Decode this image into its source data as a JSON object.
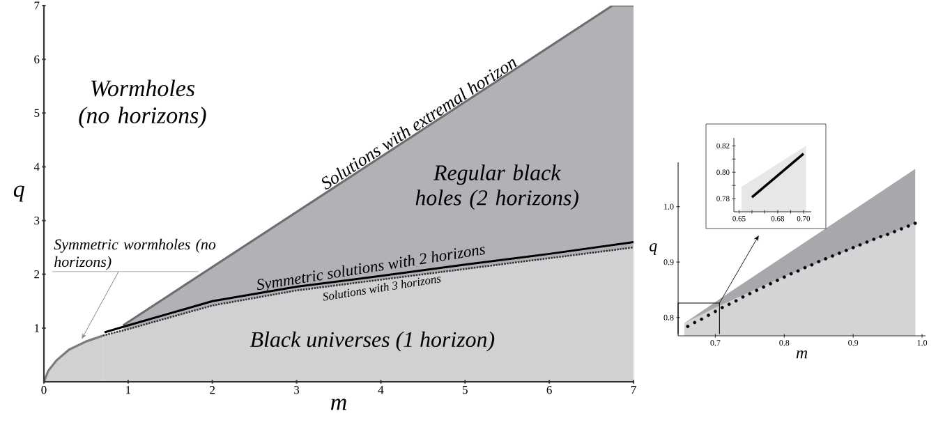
{
  "chart_data": [
    {
      "type": "area",
      "xlabel": "m",
      "ylabel": "q",
      "xlim": [
        0,
        7
      ],
      "ylim": [
        0,
        7
      ],
      "xticks": [
        0,
        1,
        2,
        3,
        4,
        5,
        6,
        7
      ],
      "yticks": [
        1,
        2,
        3,
        4,
        5,
        6,
        7
      ],
      "series": [
        {
          "color": "#b1b2b6",
          "x": [
            0.94,
            6.75,
            7
          ],
          "values": [
            1.05,
            7,
            7
          ]
        },
        {
          "color": "#d0d1d3",
          "x": [
            0,
            0.05,
            0.15,
            0.3,
            0.5,
            0.7
          ],
          "values": [
            0,
            0.2,
            0.4,
            0.6,
            0.75,
            0.86
          ]
        },
        {
          "color": "#d0d1d3",
          "line_style": "dashed",
          "x": [
            0.7,
            1,
            2,
            3,
            4,
            5,
            6,
            7
          ],
          "values": [
            0.86,
            0.98,
            1.42,
            1.7,
            1.9,
            2.1,
            2.3,
            2.5
          ]
        },
        {
          "type": "line",
          "color": "#000000",
          "x": [
            0.72,
            1,
            2,
            3,
            4,
            5,
            6,
            7
          ],
          "values": [
            0.92,
            1.05,
            1.5,
            1.77,
            1.97,
            2.18,
            2.38,
            2.6
          ]
        }
      ],
      "annotations": [
        "Wormholes (no horizons)",
        {
          "text": "Solutions with extremal horizon",
          "x": 4.5,
          "y": 4.7
        },
        "Regular black holes (2 horizons)",
        {
          "text": "Symmetric solutions with 2 horizons",
          "x": 3.9,
          "y": 1.95
        },
        {
          "text": "Solutions with 3 horizons",
          "x": 4.0,
          "y": 1.86
        },
        "Black universes (1 horizon)",
        {
          "text": "Symmetric wormholes (no horizons)",
          "x": 0.45,
          "y": 0.8
        }
      ]
    },
    {
      "type": "area",
      "xlabel": "m",
      "ylabel": "q",
      "xlim": [
        0.646,
        1.005
      ],
      "ylim": [
        0.767,
        1.08
      ],
      "xticks": [
        0.7,
        0.8,
        0.9,
        {
          "value": 1.0,
          "label": "1.0"
        }
      ],
      "yticks": [
        0.8,
        0.9,
        {
          "value": 1.0,
          "label": "1.0"
        }
      ],
      "series": [
        {
          "color": "#a7a8ab",
          "x": [
            0.655,
            0.72,
            0.99
          ],
          "values": [
            0.79,
            0.845,
            1.068
          ]
        },
        {
          "color": "#d3d4d6",
          "x": [
            0.655,
            0.7,
            0.8,
            0.9,
            0.99
          ],
          "values": [
            0.79,
            0.818,
            0.874,
            0.925,
            0.97
          ]
        },
        {
          "type": "scatter",
          "color": "#000000",
          "x": [
            0.66,
            0.67,
            0.68,
            0.69,
            0.7,
            0.71,
            0.72,
            0.73,
            0.74,
            0.75,
            0.76,
            0.77,
            0.78,
            0.79,
            0.8,
            0.81,
            0.82,
            0.83,
            0.84,
            0.85,
            0.86,
            0.87,
            0.88,
            0.89,
            0.9,
            0.91,
            0.92,
            0.93,
            0.94,
            0.95,
            0.96,
            0.97,
            0.98,
            0.99
          ],
          "values": [
            0.784,
            0.791,
            0.797,
            0.804,
            0.811,
            0.818,
            0.824,
            0.83,
            0.837,
            0.843,
            0.849,
            0.855,
            0.861,
            0.867,
            0.873,
            0.879,
            0.884,
            0.89,
            0.895,
            0.901,
            0.906,
            0.911,
            0.916,
            0.921,
            0.926,
            0.931,
            0.936,
            0.941,
            0.946,
            0.95,
            0.955,
            0.96,
            0.965,
            0.97
          ]
        }
      ]
    },
    {
      "type": "area",
      "xlim": [
        0.646,
        0.706
      ],
      "ylim": [
        0.77,
        0.826
      ],
      "xticks": [
        0.65,
        {
          "value": 0.66,
          "label": null
        },
        {
          "value": 0.67,
          "label": null
        },
        0.68,
        {
          "value": 0.69,
          "label": null
        },
        {
          "value": 0.7,
          "label": "0.70"
        }
      ],
      "yticks": [
        0.78,
        {
          "value": 0.79,
          "label": null
        },
        {
          "value": 0.8,
          "label": "0.80"
        },
        {
          "value": 0.81,
          "label": null
        },
        0.82
      ],
      "series": [
        {
          "color": "#e6e7e8",
          "x": [
            0.652,
            0.702
          ],
          "values": [
            0.789,
            0.82
          ]
        },
        {
          "type": "line",
          "color": "#000000",
          "x": [
            0.66,
            0.7
          ],
          "values": [
            0.781,
            0.814
          ]
        }
      ]
    }
  ]
}
